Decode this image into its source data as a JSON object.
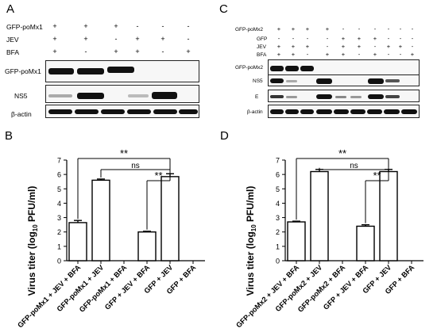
{
  "panels": {
    "A": {
      "letter": "A",
      "rows": [
        {
          "label": "GFP-poMx1",
          "signs": [
            "+",
            "+",
            "+",
            "-",
            "-",
            "-"
          ]
        },
        {
          "label": "JEV",
          "signs": [
            "+",
            "+",
            "-",
            "+",
            "+",
            "-"
          ]
        },
        {
          "label": "BFA",
          "signs": [
            "+",
            "-",
            "+",
            "+",
            "-",
            "+"
          ]
        }
      ],
      "blots": [
        "GFP-poMx1",
        "NS5",
        "β-actin"
      ]
    },
    "B": {
      "letter": "B",
      "ylabel_main": "Virus titer (log",
      "ylabel_sub": "10",
      "ylabel_tail": " PFU/ml)",
      "sig": [
        "**",
        "ns",
        "**"
      ]
    },
    "C": {
      "letter": "C",
      "rows": [
        {
          "label": "GFP-poMx2",
          "signs": [
            "+",
            "+",
            "+",
            "+",
            "-",
            "-",
            "-",
            "-",
            "-",
            "-"
          ]
        },
        {
          "label": "GFP",
          "signs": [
            "-",
            "-",
            "-",
            "-",
            "+",
            "+",
            "+",
            "-",
            "-",
            "-"
          ]
        },
        {
          "label": "JEV",
          "signs": [
            "+",
            "+",
            "+",
            "-",
            "+",
            "+",
            "-",
            "+",
            "+",
            "-"
          ]
        },
        {
          "label": "BFA",
          "signs": [
            "+",
            "+",
            "-",
            "+",
            "+",
            "-",
            "+",
            "-",
            "-",
            "+"
          ]
        }
      ],
      "blots": [
        "GFP-poMx2",
        "NS5",
        "E",
        "β-actin"
      ]
    },
    "D": {
      "letter": "D",
      "ylabel_main": "Virus titer (log",
      "ylabel_sub": "10",
      "ylabel_tail": " PFU/ml)",
      "sig": [
        "**",
        "ns",
        "**"
      ]
    }
  },
  "chart_data": [
    {
      "type": "bar",
      "categories": [
        "GFP-poMx1 + JEV + BFA",
        "GFP-poMx1 + JEV",
        "GFP-poMx1 + BFA",
        "GFP + JEV + BFA",
        "GFP + JEV",
        "GFP + BFA"
      ],
      "values": [
        2.65,
        5.6,
        0,
        2.0,
        5.85,
        0
      ],
      "errors": [
        0.15,
        0.08,
        0,
        0.05,
        0.2,
        0
      ],
      "ylim": [
        0,
        7
      ],
      "yticks": [
        "0",
        "1",
        "2",
        "3",
        "4",
        "5",
        "6",
        "7"
      ]
    },
    {
      "type": "bar",
      "categories": [
        "GFP-poMx2 + JEV + BFA",
        "GFP-poMx2 + JEV",
        "GFP-poMx2 + BFA",
        "GFP + JEV + BFA",
        "GFP + JEV",
        "GFP + BFA"
      ],
      "values": [
        2.7,
        6.2,
        0,
        2.4,
        6.2,
        0
      ],
      "errors": [
        0.05,
        0.15,
        0,
        0.1,
        0.15,
        0
      ],
      "ylim": [
        0,
        7
      ],
      "yticks": [
        "0",
        "1",
        "2",
        "3",
        "4",
        "5",
        "6",
        "7"
      ]
    }
  ]
}
